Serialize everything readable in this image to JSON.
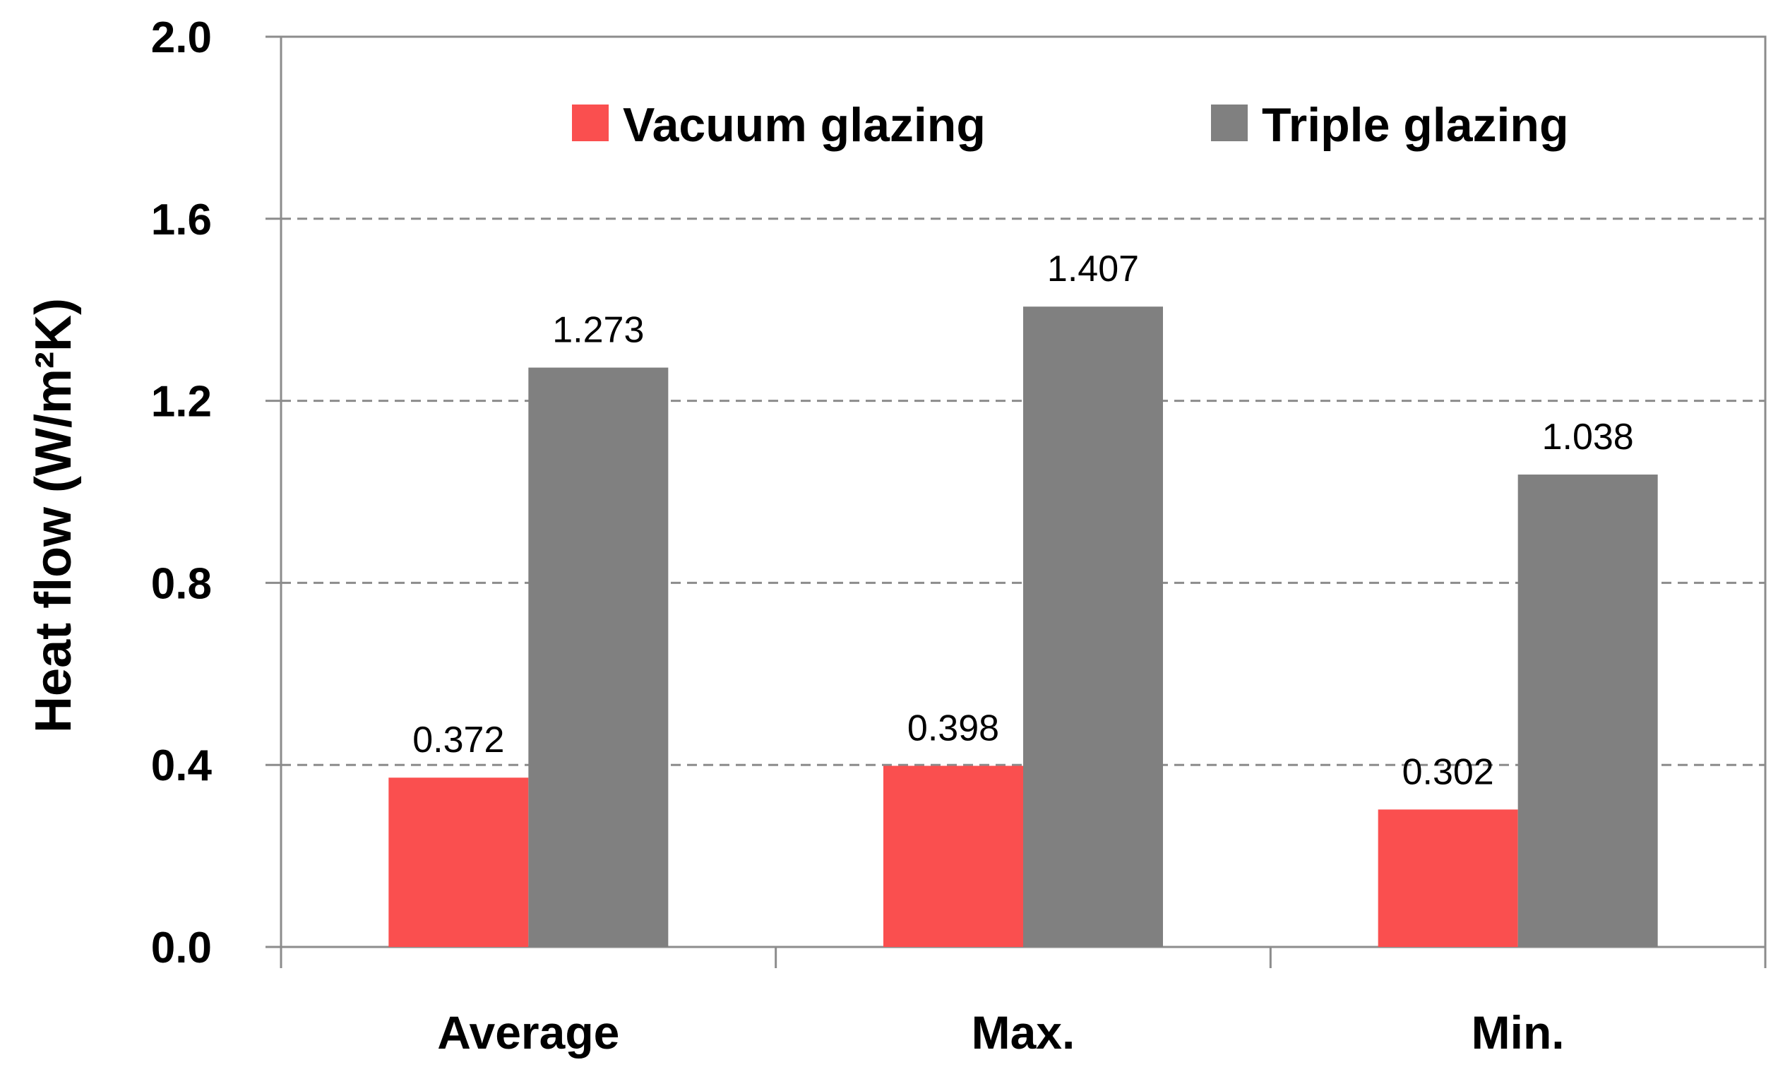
{
  "chart_data": {
    "type": "bar",
    "title": "",
    "xlabel": "",
    "ylabel": "Heat flow (W/m²K)",
    "ylim": [
      0.0,
      2.0
    ],
    "yticks": [
      "0.0",
      "0.4",
      "0.8",
      "1.2",
      "1.6",
      "2.0"
    ],
    "categories": [
      "Average",
      "Max.",
      "Min."
    ],
    "series": [
      {
        "name": "Vacuum glazing",
        "color": "#fa4f4f",
        "values": [
          0.372,
          0.398,
          0.302
        ],
        "labels": [
          "0.372",
          "0.398",
          "0.302"
        ]
      },
      {
        "name": "Triple glazing",
        "color": "#808080",
        "values": [
          1.273,
          1.407,
          1.038
        ],
        "labels": [
          "1.273",
          "1.407",
          "1.038"
        ]
      }
    ],
    "grid": "horizontal dashed",
    "legend": "top"
  }
}
